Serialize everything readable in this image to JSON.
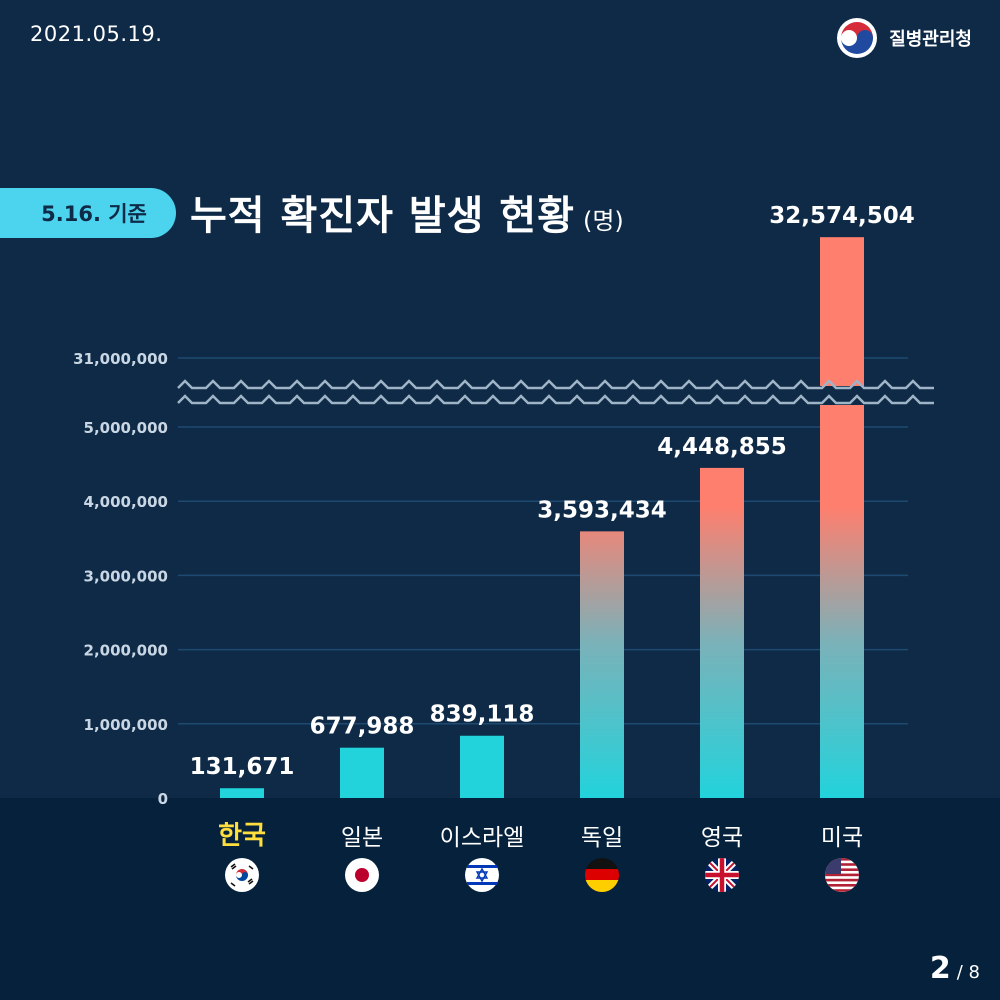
{
  "header": {
    "date": "2021.05.19.",
    "org_name": "질병관리청",
    "badge": "5.16. 기준",
    "title": "누적 확진자 발생 현황",
    "unit": "(명)"
  },
  "colors": {
    "background": "#0e2a47",
    "bottom_band": "#05213b",
    "bar_bottom": "#22d3dc",
    "bar_top": "#ff7f6e",
    "badge": "#4cd3ee",
    "highlight": "#ffde3d"
  },
  "chart_data": {
    "type": "bar",
    "title": "누적 확진자 발생 현황",
    "unit": "(명)",
    "categories": [
      "한국",
      "일본",
      "이스라엘",
      "독일",
      "영국",
      "미국"
    ],
    "values": [
      131671,
      677988,
      839118,
      3593434,
      4448855,
      32574504
    ],
    "value_labels": [
      "131,671",
      "677,988",
      "839,118",
      "3,593,434",
      "4,448,855",
      "32,574,504"
    ],
    "highlight_category": "한국",
    "y_ticks": [
      0,
      1000000,
      2000000,
      3000000,
      4000000,
      5000000,
      31000000
    ],
    "y_tick_labels": [
      "0",
      "1,000,000",
      "2,000,000",
      "3,000,000",
      "4,000,000",
      "5,000,000",
      "31,000,000"
    ],
    "axis_break": {
      "from": 5000000,
      "to": 31000000
    },
    "ylim": [
      0,
      31000000
    ],
    "grid": true,
    "flags": [
      "kr",
      "jp",
      "il",
      "de",
      "gb",
      "us"
    ]
  },
  "pager": {
    "current": "2",
    "total": "/ 8"
  }
}
